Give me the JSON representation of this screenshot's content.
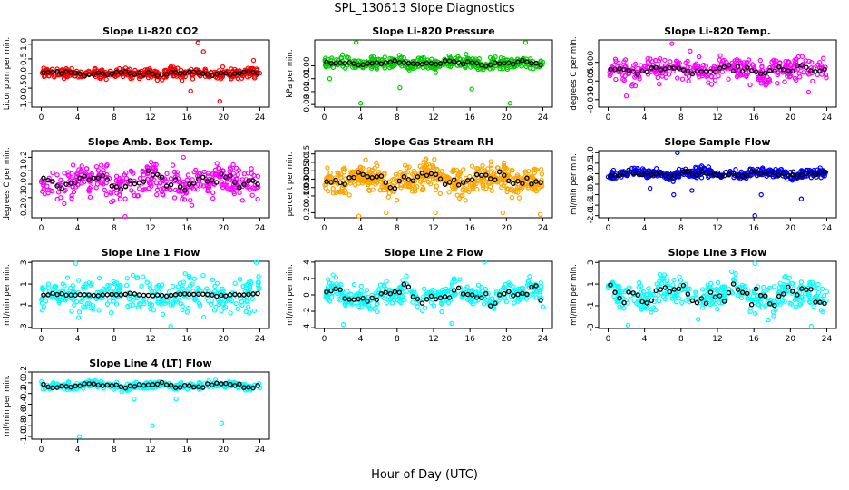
{
  "figure": {
    "title": "SPL_130613  Slope Diagnostics",
    "xlabel": "Hour of Day (UTC)"
  },
  "chart_data": [
    {
      "type": "scatter",
      "title": "Slope Li-820 CO2",
      "ylabel": "Licor ppm per min.",
      "xlim": [
        0,
        24
      ],
      "xticks": [
        "0",
        "4",
        "8",
        "12",
        "16",
        "20",
        "24"
      ],
      "ylim": [
        -1.15,
        1.15
      ],
      "yticks": [
        -1,
        -0.5,
        0,
        0.5,
        1
      ],
      "ytick_labels": [
        "-1.0",
        "-0.5",
        "0.0",
        "0.5",
        "1.0"
      ],
      "color": "#ff0000",
      "center": 0,
      "spread": 0.12,
      "hourly_spread": 0.06,
      "count": 420,
      "outliers": [
        [
          17.2,
          1.05
        ],
        [
          19.6,
          -0.95
        ],
        [
          17.8,
          0.75
        ],
        [
          16.4,
          -0.6
        ],
        [
          23.3,
          0.45
        ]
      ]
    },
    {
      "type": "scatter",
      "title": "Slope Li-820 Pressure",
      "ylabel": "kPa per min.",
      "xlim": [
        0,
        24
      ],
      "xticks": [
        "0",
        "4",
        "8",
        "12",
        "16",
        "20",
        "24"
      ],
      "ylim": [
        -0.032,
        0.02
      ],
      "yticks": [
        -0.03,
        -0.02,
        -0.01,
        0
      ],
      "ytick_labels": [
        "-0.03",
        "-0.02",
        "-0.01",
        "0.00"
      ],
      "color": "#00cc00",
      "center": 0.002,
      "spread": 0.003,
      "hourly_spread": 0.0015,
      "count": 420,
      "outliers": [
        [
          4,
          -0.029
        ],
        [
          8.3,
          -0.017
        ],
        [
          16.2,
          -0.018
        ],
        [
          20.4,
          -0.029
        ],
        [
          22.1,
          0.018
        ],
        [
          3.5,
          0.018
        ],
        [
          0.6,
          -0.01
        ]
      ]
    },
    {
      "type": "scatter",
      "title": "Slope Li-820 Temp.",
      "ylabel": "degrees C per min.",
      "xlim": [
        0,
        24
      ],
      "xticks": [
        "0",
        "4",
        "8",
        "12",
        "16",
        "20",
        "24"
      ],
      "ylim": [
        -0.012,
        0.006
      ],
      "yticks": [
        -0.01,
        -0.005,
        0
      ],
      "ytick_labels": [
        "-0.010",
        "-0.005",
        "0.000"
      ],
      "color": "#ff00ff",
      "center": -0.002,
      "spread": 0.0022,
      "hourly_spread": 0.001,
      "count": 360,
      "outliers": [
        [
          7,
          0.005
        ],
        [
          2,
          -0.009
        ],
        [
          22,
          -0.008
        ],
        [
          9,
          0.003
        ]
      ]
    },
    {
      "type": "scatter",
      "title": "Slope Amb. Box Temp.",
      "ylabel": "degrees C per min.",
      "xlim": [
        0,
        24
      ],
      "xticks": [
        "0",
        "4",
        "8",
        "12",
        "16",
        "20",
        "24"
      ],
      "ylim": [
        -0.25,
        0.25
      ],
      "yticks": [
        -0.2,
        -0.1,
        0,
        0.1,
        0.2
      ],
      "ytick_labels": [
        "-0.2",
        "-0.1",
        "0.0",
        "0.1",
        "0.2"
      ],
      "color": "#ff00ff",
      "center": 0.02,
      "spread": 0.08,
      "hourly_spread": 0.05,
      "count": 380,
      "outliers": [
        [
          9.2,
          -0.24
        ],
        [
          15.6,
          0.2
        ]
      ]
    },
    {
      "type": "scatter",
      "title": "Slope Gas Stream RH",
      "ylabel": "percent per min.",
      "xlim": [
        0,
        24
      ],
      "xticks": [
        "0",
        "4",
        "8",
        "12",
        "16",
        "20",
        "24"
      ],
      "ylim": [
        -0.23,
        0.17
      ],
      "yticks": [
        -0.2,
        -0.1,
        -0.05,
        0,
        0.05,
        0.1,
        0.15
      ],
      "ytick_labels": [
        "-0.20",
        "-0.10",
        "-0.05",
        "0.00",
        "0.05",
        "0.10",
        "0.15"
      ],
      "color": "#ffa500",
      "center": 0,
      "spread": 0.06,
      "hourly_spread": 0.04,
      "count": 520,
      "outliers": [
        [
          3.8,
          -0.22
        ],
        [
          6.8,
          -0.2
        ],
        [
          12.2,
          -0.2
        ],
        [
          19.6,
          -0.2
        ],
        [
          23.7,
          -0.21
        ]
      ]
    },
    {
      "type": "scatter",
      "title": "Slope Sample Flow",
      "ylabel": "ml/min per min.",
      "xlim": [
        0,
        24
      ],
      "xticks": [
        "0",
        "4",
        "8",
        "12",
        "16",
        "20",
        "24"
      ],
      "ylim": [
        -2.1,
        1.1
      ],
      "yticks": [
        -2,
        -1.5,
        -1,
        -0.5,
        0,
        0.5,
        1
      ],
      "ytick_labels": [
        "-2.0",
        "-1.5",
        "-1.0",
        "-0.5",
        "0.0",
        "0.5",
        "1.0"
      ],
      "color": "#0000ff",
      "center": 0,
      "spread": 0.15,
      "hourly_spread": 0.12,
      "count": 420,
      "outliers": [
        [
          16.1,
          -2.0
        ],
        [
          7.6,
          1.0
        ],
        [
          7.2,
          -1.0
        ],
        [
          16.8,
          -1.0
        ],
        [
          21.2,
          -1.2
        ],
        [
          4.6,
          -0.7
        ],
        [
          9.2,
          -0.8
        ]
      ]
    },
    {
      "type": "scatter",
      "title": "Slope Line 1 Flow",
      "ylabel": "ml/min per min.",
      "xlim": [
        0,
        24
      ],
      "xticks": [
        "0",
        "4",
        "8",
        "12",
        "16",
        "20",
        "24"
      ],
      "ylim": [
        -3.1,
        3.1
      ],
      "yticks": [
        -3,
        -1,
        1,
        3
      ],
      "ytick_labels": [
        "-3",
        "-1",
        "1",
        "3"
      ],
      "color": "#00ffff",
      "center": 0,
      "spread": 1.1,
      "hourly_spread": 0.1,
      "count": 320,
      "outliers": [
        [
          3.8,
          2.9
        ],
        [
          23.6,
          3.0
        ],
        [
          14.2,
          -2.9
        ]
      ]
    },
    {
      "type": "scatter",
      "title": "Slope Line 2 Flow",
      "ylabel": "ml/min per min.",
      "xlim": [
        0,
        24
      ],
      "xticks": [
        "0",
        "4",
        "8",
        "12",
        "16",
        "20",
        "24"
      ],
      "ylim": [
        -4.1,
        4.1
      ],
      "yticks": [
        -4,
        -2,
        0,
        2,
        4
      ],
      "ytick_labels": [
        "-4",
        "-2",
        "0",
        "2",
        "4"
      ],
      "color": "#00ffff",
      "center": 0,
      "spread": 0.9,
      "hourly_spread": 0.9,
      "count": 360,
      "outliers": [
        [
          17.6,
          4.0
        ],
        [
          2.1,
          -3.6
        ],
        [
          14,
          -3.5
        ]
      ]
    },
    {
      "type": "scatter",
      "title": "Slope Line 3 Flow",
      "ylabel": "ml/min per min.",
      "xlim": [
        0,
        24
      ],
      "xticks": [
        "0",
        "4",
        "8",
        "12",
        "16",
        "20",
        "24"
      ],
      "ylim": [
        -3.1,
        3.1
      ],
      "yticks": [
        -3,
        -1,
        1,
        3
      ],
      "ytick_labels": [
        "-3",
        "-1",
        "1",
        "3"
      ],
      "color": "#00ffff",
      "center": 0,
      "spread": 0.9,
      "hourly_spread": 0.8,
      "count": 360,
      "outliers": [
        [
          16.1,
          2.9
        ],
        [
          22.3,
          -2.9
        ],
        [
          2.2,
          -2.8
        ]
      ]
    },
    {
      "type": "scatter",
      "title": "Slope Line 4 (LT) Flow",
      "ylabel": "ml/min per min.",
      "xlim": [
        0,
        24
      ],
      "xticks": [
        "0",
        "4",
        "8",
        "12",
        "16",
        "20",
        "24"
      ],
      "ylim": [
        -1.05,
        0.2
      ],
      "yticks": [
        -1,
        -0.8,
        -0.6,
        -0.4,
        -0.2,
        0,
        0.2
      ],
      "ytick_labels": [
        "-1.0",
        "-0.8",
        "-0.6",
        "-0.4",
        "-0.2",
        "0.0",
        "0.2"
      ],
      "color": "#00ffff",
      "center": -0.05,
      "spread": 0.045,
      "hourly_spread": 0.04,
      "count": 380,
      "outliers": [
        [
          4.2,
          -1.0
        ],
        [
          12.2,
          -0.8
        ],
        [
          19.8,
          -0.75
        ],
        [
          10.2,
          -0.3
        ],
        [
          14.8,
          -0.3
        ]
      ]
    }
  ]
}
